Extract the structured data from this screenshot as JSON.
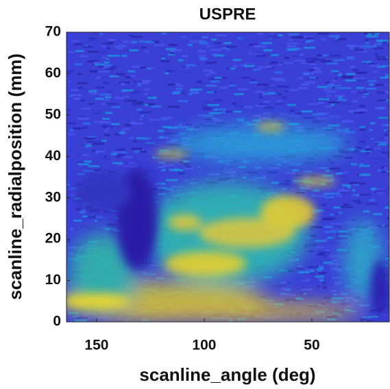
{
  "chart_data": {
    "type": "heatmap",
    "title": "USPRE",
    "x_label": "scanline_angle (deg)",
    "y_label": "scanline_radialposition (mm)",
    "xlim": [
      164,
      14
    ],
    "xticks": [
      150,
      100,
      50
    ],
    "ylim": [
      0,
      70
    ],
    "yticks": [
      0,
      10,
      20,
      30,
      40,
      50,
      60,
      70
    ]
  }
}
